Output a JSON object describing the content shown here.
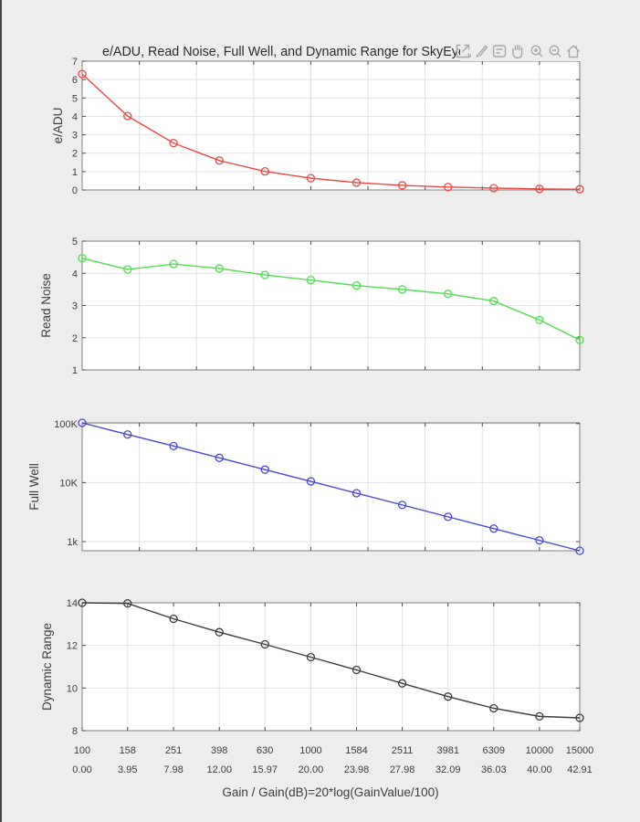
{
  "window": {
    "background": "#ededed",
    "left_border_color": "#44444e"
  },
  "title": "e/ADU, Read Noise, Full Well, and Dynamic Range for SkyEye",
  "toolbar": {
    "buttons": [
      "export",
      "brush",
      "datatips",
      "pan",
      "zoom-in",
      "zoom-out",
      "restore-view"
    ]
  },
  "x_axis": {
    "label": "Gain / Gain(dB)=20*log(GainValue/100)",
    "scale": "log",
    "xlim": [
      100,
      15000
    ],
    "gains": [
      100,
      158,
      251,
      398,
      630,
      1000,
      1584,
      2511,
      3981,
      6309,
      10000,
      15000
    ],
    "gain_tick_labels": [
      "100",
      "158",
      "251",
      "398",
      "630",
      "1000",
      "1584",
      "2511",
      "3981",
      "6309",
      "10000",
      "15000"
    ],
    "db_tick_labels": [
      "0.00",
      "3.95",
      "7.98",
      "12.00",
      "15.97",
      "20.00",
      "23.98",
      "27.98",
      "32.09",
      "36.03",
      "40.00",
      "42.91"
    ],
    "upper_plots_grid_db": [
      5,
      10,
      15,
      20,
      25,
      30,
      35,
      40
    ]
  },
  "chart_data": [
    {
      "type": "line",
      "ylabel": "e/ADU",
      "yscale": "linear",
      "ylim": [
        0,
        7
      ],
      "yticks": [
        0,
        1,
        2,
        3,
        4,
        5,
        6,
        7
      ],
      "color": "#ee4747",
      "x": [
        100,
        158,
        251,
        398,
        630,
        1000,
        1584,
        2511,
        3981,
        6309,
        10000,
        15000
      ],
      "values": [
        6.3,
        4.02,
        2.55,
        1.6,
        1.01,
        0.64,
        0.4,
        0.25,
        0.16,
        0.1,
        0.06,
        0.04
      ]
    },
    {
      "type": "line",
      "ylabel": "Read Noise",
      "yscale": "linear",
      "ylim": [
        1,
        5
      ],
      "yticks": [
        1,
        2,
        3,
        4,
        5
      ],
      "color": "#52de52",
      "x": [
        100,
        158,
        251,
        398,
        630,
        1000,
        1584,
        2511,
        3981,
        6309,
        10000,
        15000
      ],
      "values": [
        4.47,
        4.12,
        4.29,
        4.15,
        3.95,
        3.79,
        3.62,
        3.5,
        3.36,
        3.14,
        2.55,
        1.93
      ]
    },
    {
      "type": "line",
      "ylabel": "Full Well",
      "yscale": "log",
      "ylim": [
        700,
        103000
      ],
      "yticks": [
        1000,
        10000,
        100000
      ],
      "ytick_labels": [
        "1k",
        "10K",
        "100K"
      ],
      "color": "#4949d8",
      "x": [
        100,
        158,
        251,
        398,
        630,
        1000,
        1584,
        2511,
        3981,
        6309,
        10000,
        15000
      ],
      "values": [
        103000,
        65400,
        41700,
        26300,
        16600,
        10500,
        6620,
        4180,
        2630,
        1660,
        1050,
        700
      ]
    },
    {
      "type": "line",
      "ylabel": "Dynamic Range",
      "yscale": "linear",
      "ylim": [
        8,
        14
      ],
      "yticks": [
        8,
        10,
        12,
        14
      ],
      "color": "#3d3d3d",
      "x": [
        100,
        158,
        251,
        398,
        630,
        1000,
        1584,
        2511,
        3981,
        6309,
        10000,
        15000
      ],
      "values": [
        14,
        13.97,
        13.25,
        12.62,
        12.05,
        11.45,
        10.85,
        10.22,
        9.6,
        9.05,
        8.67,
        8.6
      ]
    }
  ]
}
